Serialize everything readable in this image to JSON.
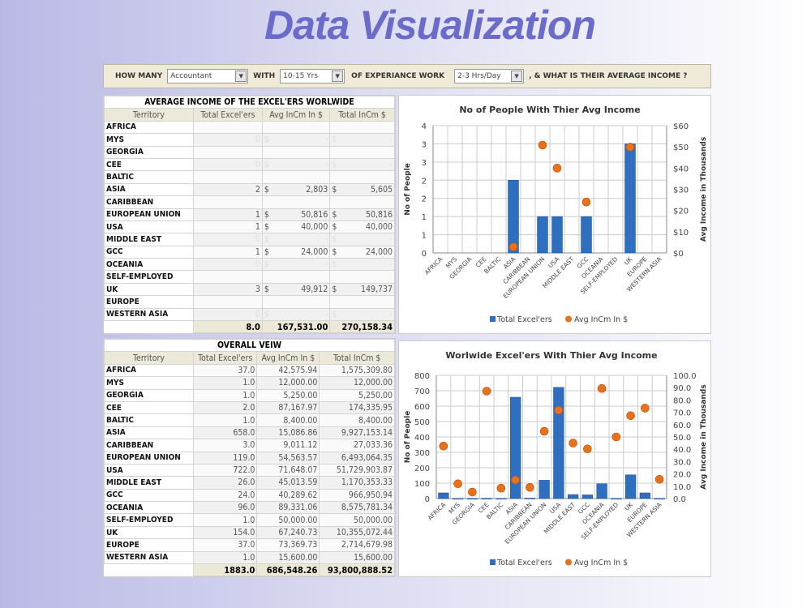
{
  "title": "Data Visualization",
  "toolbar": {
    "how_many": "HOW MANY",
    "profession": "Accountant",
    "with": "WITH",
    "experience": "10-15 Yrs",
    "of_experience": "OF EXPERIANCE WORK",
    "hours": "2-3 Hrs/Day",
    "question": ", & WHAT IS THEIR AVERAGE INCOME ?"
  },
  "table1": {
    "title": "AVERAGE INCOME OF THE EXCEL'ERS WORLWIDE",
    "headers": [
      "Territory",
      "Total Excel'ers",
      "Avg InCm In $",
      "Total InCm $"
    ],
    "rows": [
      [
        "AFRICA",
        "",
        "",
        ""
      ],
      [
        "MYS",
        "0",
        "-",
        "-"
      ],
      [
        "GEORGIA",
        "",
        "",
        ""
      ],
      [
        "CEE",
        "0",
        "-",
        "-"
      ],
      [
        "BALTIC",
        "",
        "",
        ""
      ],
      [
        "ASIA",
        "2",
        "2,803",
        "5,605"
      ],
      [
        "CARIBBEAN",
        "",
        "",
        ""
      ],
      [
        "EUROPEAN UNION",
        "1",
        "50,816",
        "50,816"
      ],
      [
        "USA",
        "1",
        "40,000",
        "40,000"
      ],
      [
        "MIDDLE EAST",
        "0",
        "-",
        "-"
      ],
      [
        "GCC",
        "1",
        "24,000",
        "24,000"
      ],
      [
        "OCEANIA",
        "0",
        "-",
        "-"
      ],
      [
        "SELF-EMPLOYED",
        "",
        "",
        ""
      ],
      [
        "UK",
        "3",
        "49,912",
        "149,737"
      ],
      [
        "EUROPE",
        "",
        "",
        ""
      ],
      [
        "WESTERN ASIA",
        "0",
        "-",
        "-"
      ]
    ],
    "totals": [
      "8.0",
      "167,531.00",
      "270,158.34"
    ]
  },
  "table2": {
    "title": "OVERALL VEIW",
    "headers": [
      "Territory",
      "Total Excel'ers",
      "Avg InCm In $",
      "Total InCm $"
    ],
    "rows": [
      [
        "AFRICA",
        "37.0",
        "42,575.94",
        "1,575,309.80"
      ],
      [
        "MYS",
        "1.0",
        "12,000.00",
        "12,000.00"
      ],
      [
        "GEORGIA",
        "1.0",
        "5,250.00",
        "5,250.00"
      ],
      [
        "CEE",
        "2.0",
        "87,167.97",
        "174,335.95"
      ],
      [
        "BALTIC",
        "1.0",
        "8,400.00",
        "8,400.00"
      ],
      [
        "ASIA",
        "658.0",
        "15,086.86",
        "9,927,153.14"
      ],
      [
        "CARIBBEAN",
        "3.0",
        "9,011.12",
        "27,033.36"
      ],
      [
        "EUROPEAN UNION",
        "119.0",
        "54,563.57",
        "6,493,064.35"
      ],
      [
        "USA",
        "722.0",
        "71,648.07",
        "51,729,903.87"
      ],
      [
        "MIDDLE EAST",
        "26.0",
        "45,013.59",
        "1,170,353.33"
      ],
      [
        "GCC",
        "24.0",
        "40,289.62",
        "966,950.94"
      ],
      [
        "OCEANIA",
        "96.0",
        "89,331.06",
        "8,575,781.34"
      ],
      [
        "SELF-EMPLOYED",
        "1.0",
        "50,000.00",
        "50,000.00"
      ],
      [
        "UK",
        "154.0",
        "67,240.73",
        "10,355,072.44"
      ],
      [
        "EUROPE",
        "37.0",
        "73,369.73",
        "2,714,679.98"
      ],
      [
        "WESTERN ASIA",
        "1.0",
        "15,600.00",
        "15,600.00"
      ]
    ],
    "totals": [
      "1883.0",
      "686,548.26",
      "93,800,888.52"
    ]
  },
  "colors": {
    "bar": "#2f6fc0",
    "dot": "#e8711c",
    "title": "#6b6bc9"
  },
  "chart_data": [
    {
      "type": "bar",
      "title": "No of People With Thier Avg Income",
      "ylabel": "No of People",
      "y2label": "Avg Income  in Thousands",
      "categories": [
        "AFRICA",
        "MYS",
        "GEORGIA",
        "CEE",
        "BALTIC",
        "ASIA",
        "CARIBBEAN",
        "EUROPEAN UNION",
        "USA",
        "MIDDLE EAST",
        "GCC",
        "OCEANIA",
        "SELF-EMPLOYED",
        "UK",
        "EUROPE",
        "WESTERN ASIA"
      ],
      "ylim": [
        0,
        3.5
      ],
      "yticks": [
        0,
        0.5,
        1,
        1.5,
        2,
        2.5,
        3,
        3.5
      ],
      "ytick_labels": [
        "0",
        "1",
        "1",
        "2",
        "2",
        "3",
        "3",
        "4"
      ],
      "y2lim": [
        0,
        60
      ],
      "y2ticks": [
        0,
        10,
        20,
        30,
        40,
        50,
        60
      ],
      "y2tick_labels": [
        "$0",
        "$10",
        "$20",
        "$30",
        "$40",
        "$50",
        "$60"
      ],
      "series": [
        {
          "name": "Total Excel'ers",
          "type": "bar",
          "axis": "left",
          "values": [
            0,
            0,
            0,
            0,
            0,
            2,
            0,
            1,
            1,
            0,
            1,
            0,
            0,
            3,
            0,
            0
          ]
        },
        {
          "name": "Avg InCm  In $",
          "type": "scatter",
          "axis": "right",
          "values": [
            null,
            null,
            null,
            null,
            null,
            2.803,
            null,
            50.816,
            40.0,
            null,
            24.0,
            null,
            null,
            49.912,
            null,
            null
          ]
        }
      ],
      "grid": true,
      "legend": "bottom"
    },
    {
      "type": "bar",
      "title": "Worlwide Excel'ers With Thier Avg Income",
      "ylabel": "No of People",
      "y2label": "Avg Income  in Thousands",
      "categories": [
        "AFRICA",
        "MYS",
        "GEORGIA",
        "CEE",
        "BALTIC",
        "ASIA",
        "CARIBBEAN",
        "EUROPEAN UNION",
        "USA",
        "MIDDLE EAST",
        "GCC",
        "OCEANIA",
        "SELF-EMPLOYED",
        "UK",
        "EUROPE",
        "WESTERN ASIA"
      ],
      "ylim": [
        0,
        800
      ],
      "yticks": [
        0,
        100,
        200,
        300,
        400,
        500,
        600,
        700,
        800
      ],
      "ytick_labels": [
        "0",
        "100",
        "200",
        "300",
        "400",
        "500",
        "600",
        "700",
        "800"
      ],
      "y2lim": [
        0,
        100
      ],
      "y2ticks": [
        0,
        10,
        20,
        30,
        40,
        50,
        60,
        70,
        80,
        90,
        100
      ],
      "y2tick_labels": [
        "0.0",
        "10.0",
        "20.0",
        "30.0",
        "40.0",
        "50.0",
        "60.0",
        "70.0",
        "80.0",
        "90.0",
        "100.0"
      ],
      "series": [
        {
          "name": "Total Excel'ers",
          "type": "bar",
          "axis": "left",
          "values": [
            37,
            1,
            1,
            2,
            1,
            658,
            3,
            119,
            722,
            26,
            24,
            96,
            1,
            154,
            37,
            1
          ]
        },
        {
          "name": "Avg InCm  In $",
          "type": "scatter",
          "axis": "right",
          "values": [
            42.58,
            12.0,
            5.25,
            87.17,
            8.4,
            15.09,
            9.01,
            54.56,
            71.65,
            45.01,
            40.29,
            89.33,
            50.0,
            67.24,
            73.37,
            15.6
          ]
        }
      ],
      "grid": true,
      "legend": "bottom"
    }
  ]
}
